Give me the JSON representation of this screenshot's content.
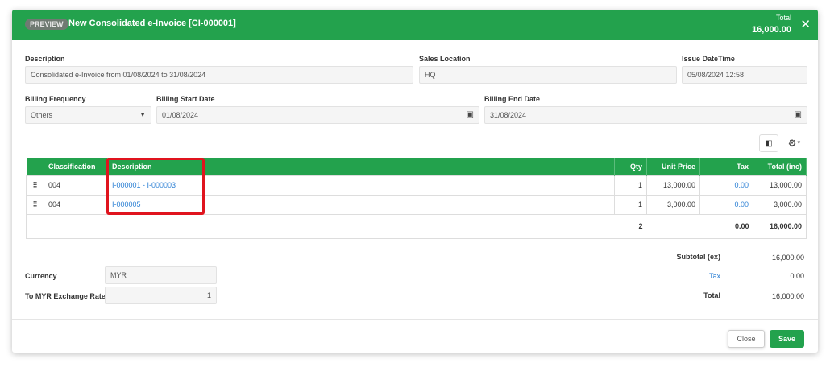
{
  "header": {
    "badge": "PREVIEW",
    "title": "New Consolidated e-Invoice [CI-000001]",
    "total_label": "Total",
    "total_value": "16,000.00"
  },
  "form": {
    "description": {
      "label": "Description",
      "value": "Consolidated e-Invoice from 01/08/2024 to 31/08/2024"
    },
    "sales_location": {
      "label": "Sales Location",
      "value": "HQ"
    },
    "issue_datetime": {
      "label": "Issue DateTime",
      "value": "05/08/2024 12:58"
    },
    "billing_frequency": {
      "label": "Billing Frequency",
      "value": "Others"
    },
    "billing_start": {
      "label": "Billing Start Date",
      "value": "01/08/2024"
    },
    "billing_end": {
      "label": "Billing End Date",
      "value": "31/08/2024"
    }
  },
  "table": {
    "headers": [
      "Classification",
      "Description",
      "Qty",
      "Unit Price",
      "Tax",
      "Total (inc)"
    ],
    "rows": [
      {
        "classification": "004",
        "description": "I-000001 - I-000003",
        "qty": "1",
        "unit_price": "13,000.00",
        "tax": "0.00",
        "total": "13,000.00"
      },
      {
        "classification": "004",
        "description": "I-000005",
        "qty": "1",
        "unit_price": "3,000.00",
        "tax": "0.00",
        "total": "3,000.00"
      }
    ],
    "footer": {
      "qty": "2",
      "tax": "0.00",
      "total": "16,000.00"
    }
  },
  "currency": {
    "label": "Currency",
    "value": "MYR",
    "rate_label": "To MYR Exchange Rate",
    "rate_value": "1"
  },
  "summary": {
    "subtotal_label": "Subtotal (ex)",
    "subtotal": "16,000.00",
    "tax_label": "Tax",
    "tax": "0.00",
    "total_label": "Total",
    "total": "16,000.00"
  },
  "buttons": {
    "close": "Close",
    "save": "Save"
  },
  "colors": {
    "primary": "#23a24d",
    "link": "#2a7fd4",
    "highlight": "#e0141e"
  }
}
